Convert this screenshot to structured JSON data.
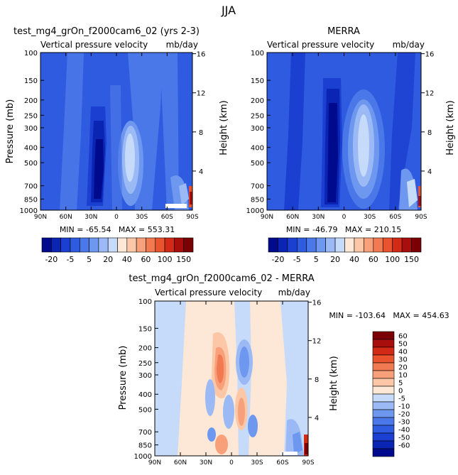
{
  "page": {
    "season": "JJA"
  },
  "colors": {
    "neg": [
      "#000a8c",
      "#0a24b4",
      "#1b3fd0",
      "#2f5be0",
      "#4a78e8",
      "#6e98ef",
      "#9bbaf5",
      "#c6daf9"
    ],
    "pos": [
      "#fde7d6",
      "#fbc7a7",
      "#f7a07a",
      "#f27a52",
      "#e9542f",
      "#d32a17",
      "#a80e0c",
      "#7a0006"
    ],
    "neutral": "#ffffff"
  },
  "chart_data": [
    {
      "id": "model",
      "type": "contour",
      "title": "test_mg4_grOn_f2000cam6_02 (yrs 2-3)",
      "subtitle_left": "Vertical pressure velocity",
      "subtitle_right": "mb/day",
      "xlabel": "",
      "ylabel": "Pressure (mb)",
      "ylabel_right": "Height (km)",
      "x_ticks": [
        "90N",
        "60N",
        "30N",
        "0",
        "30S",
        "60S",
        "90S"
      ],
      "y_ticks": [
        100,
        150,
        200,
        250,
        300,
        400,
        500,
        700,
        850,
        1000
      ],
      "height_ticks": [
        16,
        12,
        8,
        4
      ],
      "stats": "MIN = -65.54   MAX = 553.31"
    },
    {
      "id": "obs",
      "type": "contour",
      "title": "MERRA",
      "subtitle_left": "Vertical pressure velocity",
      "subtitle_right": "mb/day",
      "xlabel": "",
      "ylabel": "",
      "ylabel_right": "Height (km)",
      "x_ticks": [
        "90N",
        "60N",
        "30N",
        "0",
        "30S",
        "60S",
        "90S"
      ],
      "y_ticks": [
        100,
        150,
        200,
        250,
        300,
        400,
        500,
        700,
        850,
        1000
      ],
      "height_ticks": [
        16,
        12,
        8,
        4
      ],
      "stats": "MIN = -46.79   MAX = 210.15"
    },
    {
      "id": "diff",
      "type": "contour",
      "title": "test_mg4_grOn_f2000cam6_02 - MERRA",
      "subtitle_left": "Vertical pressure velocity",
      "subtitle_right": "mb/day",
      "xlabel": "",
      "ylabel": "Pressure (mb)",
      "ylabel_right": "Height (km)",
      "x_ticks": [
        "90N",
        "60N",
        "30N",
        "0",
        "30S",
        "60S",
        "90S"
      ],
      "y_ticks": [
        100,
        150,
        200,
        250,
        300,
        400,
        500,
        700,
        850,
        1000
      ],
      "height_ticks": [
        16,
        12,
        8,
        4
      ],
      "stats": "MIN = -103.64   MAX = 454.63"
    }
  ],
  "colorbar_top": {
    "labels": [
      "-20",
      "-5",
      "5",
      "20",
      "40",
      "60",
      "100",
      "150"
    ]
  },
  "colorbar_diff": {
    "levels": [
      "60",
      "50",
      "40",
      "30",
      "20",
      "10",
      "5",
      "0",
      "-5",
      "-10",
      "-20",
      "-30",
      "-40",
      "-50",
      "-60"
    ]
  }
}
